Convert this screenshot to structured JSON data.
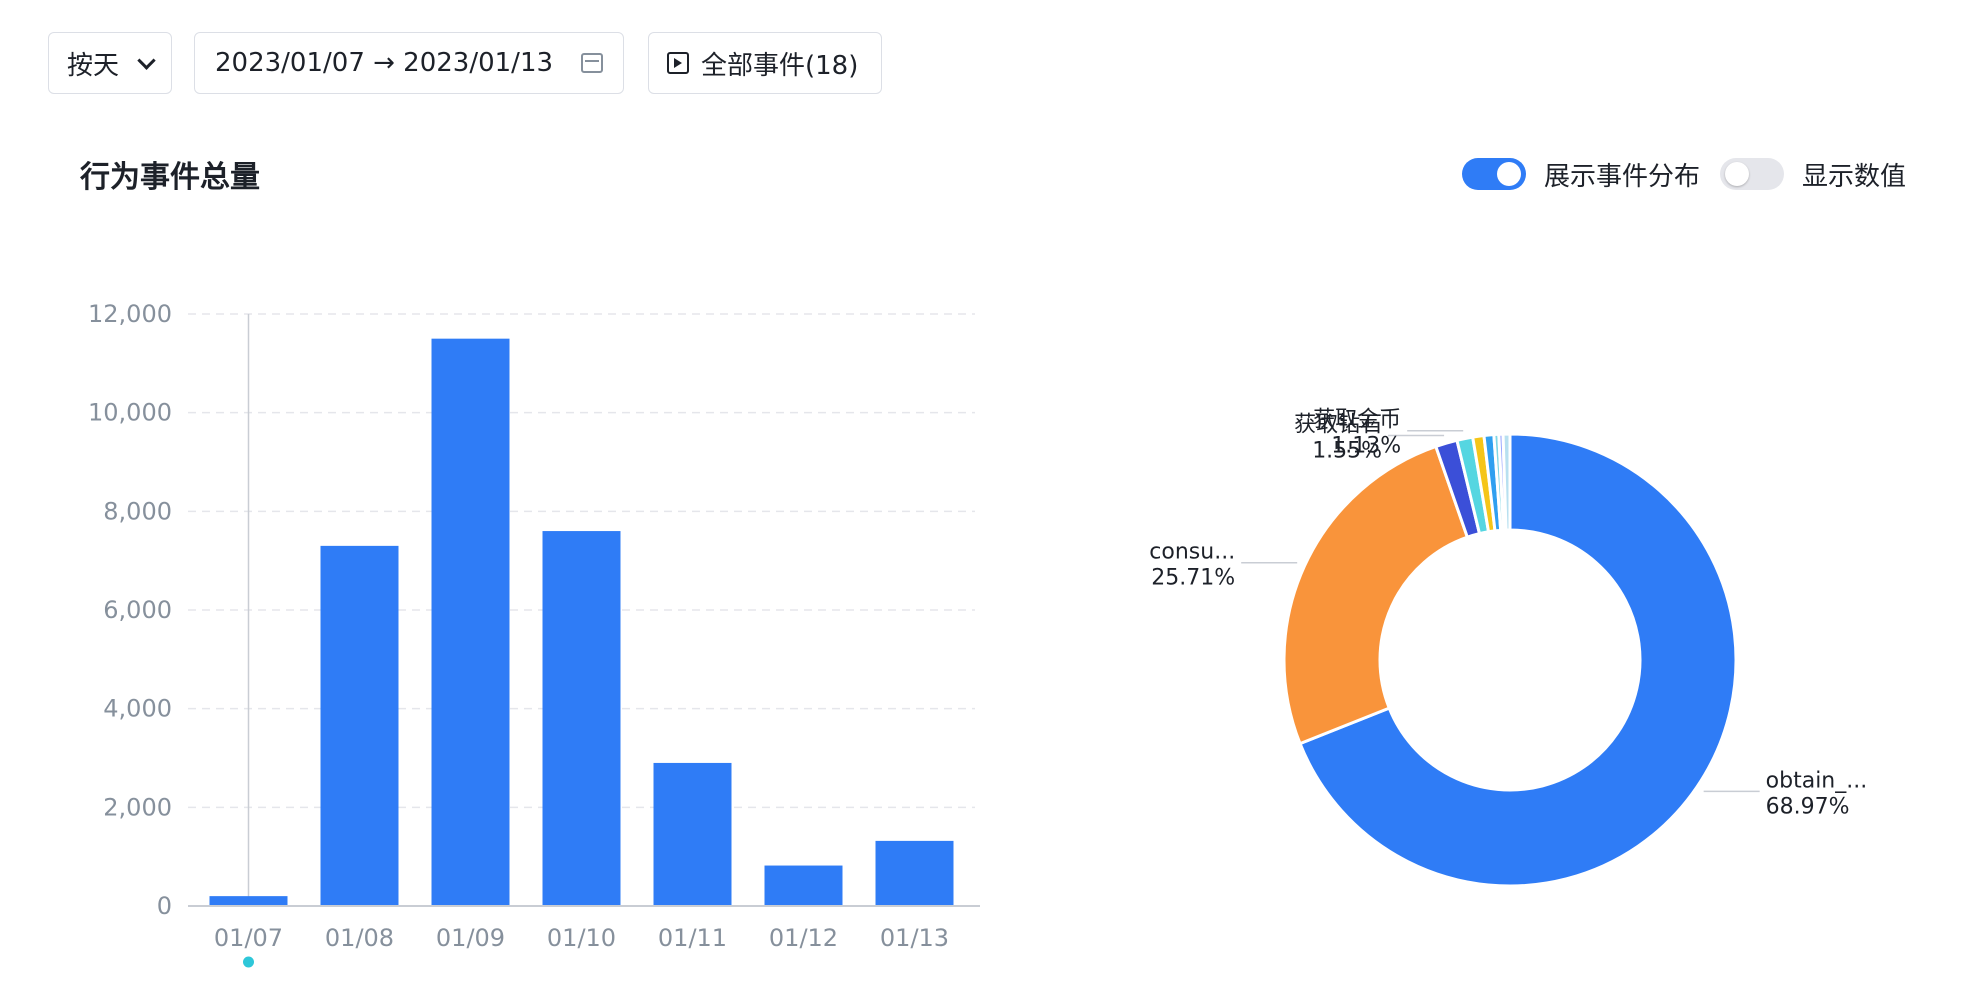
{
  "controls": {
    "granularity": "按天",
    "date_range": "2023/01/07 → 2023/01/13",
    "events": "全部事件(18)"
  },
  "chart_title": "行为事件总量",
  "toggles": {
    "distribution": {
      "label": "展示事件分布",
      "on": true
    },
    "show_values": {
      "label": "显示数值",
      "on": false
    }
  },
  "colors": {
    "accent": "#2f7cf6",
    "orange": "#f9943b",
    "marker": "#2ec7d9"
  },
  "chart_data": [
    {
      "type": "bar",
      "categories": [
        "01/07",
        "01/08",
        "01/09",
        "01/10",
        "01/11",
        "01/12",
        "01/13"
      ],
      "values": [
        200,
        7300,
        11500,
        7600,
        2900,
        820,
        1320
      ],
      "ylim": [
        0,
        12000
      ],
      "yticks": [
        0,
        2000,
        4000,
        6000,
        8000,
        10000,
        12000
      ],
      "ytick_labels": [
        "0",
        "2,000",
        "4,000",
        "6,000",
        "8,000",
        "10,000",
        "12,000"
      ],
      "color": "#2f7cf6",
      "highlight_category": "01/07",
      "grid": true
    },
    {
      "type": "pie",
      "donut": true,
      "slices": [
        {
          "label": "obtain_...",
          "percent": "68.97%",
          "value": 68.97,
          "color": "#2f7cf6"
        },
        {
          "label": "consu...",
          "percent": "25.71%",
          "value": 25.71,
          "color": "#f9943b"
        },
        {
          "label": "获取钻石",
          "percent": "1.55%",
          "value": 1.55,
          "color": "#3b4fd8"
        },
        {
          "label": "获取金币",
          "percent": "1.13%",
          "value": 1.13,
          "color": "#55d6e1"
        },
        {
          "label": "",
          "percent": "",
          "value": 0.8,
          "color": "#f5c518"
        },
        {
          "label": "",
          "percent": "",
          "value": 0.7,
          "color": "#2f9ff0"
        },
        {
          "label": "",
          "percent": "",
          "value": 0.35,
          "color": "#7fd7e6"
        },
        {
          "label": "",
          "percent": "",
          "value": 0.3,
          "color": "#9aa7ff"
        },
        {
          "label": "",
          "percent": "",
          "value": 0.49,
          "color": "#b8e0f0"
        }
      ]
    }
  ]
}
